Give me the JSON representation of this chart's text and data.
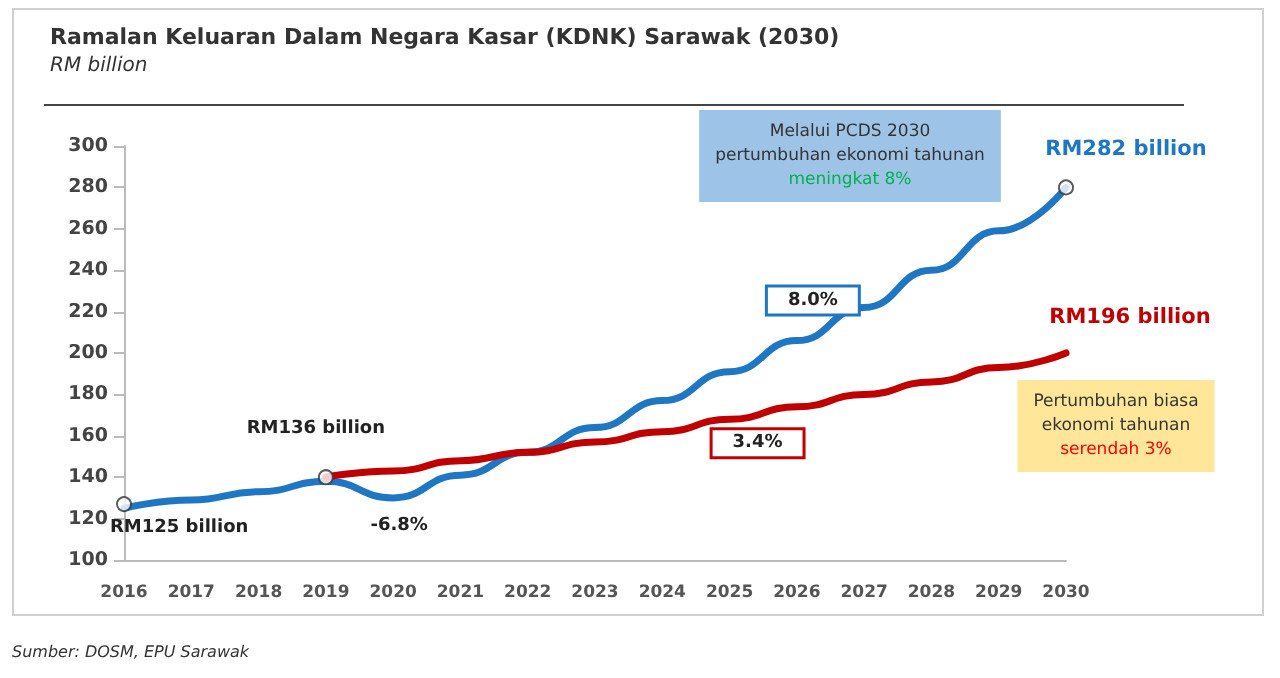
{
  "chart_data": {
    "type": "line",
    "title": "Ramalan Keluaran Dalam Negara Kasar (KDNK) Sarawak (2030)",
    "subtitle": "RM billion",
    "categories": [
      "2016",
      "2017",
      "2018",
      "2019",
      "2020",
      "2021",
      "2022",
      "2023",
      "2024",
      "2025",
      "2026",
      "2027",
      "2028",
      "2029",
      "2030"
    ],
    "series": [
      {
        "color": "#1f77c4",
        "values": [
          125,
          129,
          133,
          138,
          130,
          141,
          152,
          164,
          177,
          191,
          206,
          222,
          240,
          259,
          280
        ]
      },
      {
        "color": "#c00000",
        "values": [
          null,
          null,
          null,
          140,
          143,
          148,
          152,
          157,
          162,
          168,
          174,
          180,
          186,
          193,
          200
        ]
      },
      {
        "type": "scatter",
        "marker": "circle",
        "color": "#ffffff",
        "values": [
          127,
          null,
          null,
          140,
          null,
          null,
          null,
          null,
          null,
          null,
          null,
          null,
          null,
          null,
          280
        ]
      }
    ],
    "ylim": [
      100,
      300
    ],
    "yticks": [
      100,
      120,
      140,
      160,
      180,
      200,
      220,
      240,
      260,
      280,
      300
    ],
    "grid": false,
    "marker": "none",
    "line_style": "solid",
    "annotations": [
      {
        "text": "RM125 billion",
        "x": "2016",
        "y": 125
      },
      {
        "text": "RM136 billion",
        "x": "2019",
        "y": 140
      },
      {
        "text": "-6.8%",
        "x": "2020",
        "y": 130
      },
      {
        "text": "8.0%",
        "x": "2026",
        "y": 206
      },
      {
        "text": "3.4%",
        "x": "2025",
        "y": 168
      },
      {
        "text": "RM282 billion",
        "x": "2030",
        "y": 280
      },
      {
        "text": "RM196 billion",
        "x": "2030",
        "y": 200
      },
      "Melalui PCDS 2030\npertumbuhan ekonomi tahunan\nmeningkat 8%",
      "Pertumbuhan biasa\nekonomi tahunan\nserendah 3%",
      "Sumber: DOSM, EPU Sarawak"
    ]
  }
}
